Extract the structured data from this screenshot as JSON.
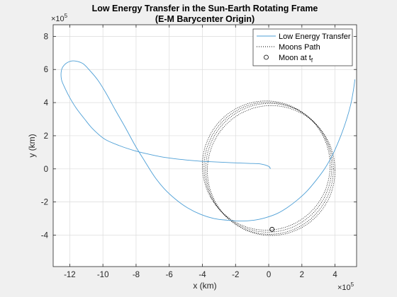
{
  "chart_data": {
    "type": "line",
    "title": "Low Energy Transfer in the Sun-Earth Rotating Frame",
    "subtitle": "(E-M Barycenter Origin)",
    "xlabel": "x (km)",
    "ylabel": "y (km)",
    "x_exponent_base": "×10",
    "x_exponent_power": "5",
    "y_exponent_base": "×10",
    "y_exponent_power": "5",
    "xlim": [
      -13,
      5.3
    ],
    "ylim": [
      -5.9,
      8.7
    ],
    "x_ticks": [
      -12,
      -10,
      -8,
      -6,
      -4,
      -2,
      0,
      2,
      4
    ],
    "x_tick_labels": [
      "-12",
      "-10",
      "-8",
      "-6",
      "-4",
      "-2",
      "0",
      "2",
      "4"
    ],
    "y_ticks": [
      -4,
      -2,
      0,
      2,
      4,
      6,
      8
    ],
    "y_tick_labels": [
      "-4",
      "-2",
      "0",
      "2",
      "4",
      "6",
      "8"
    ],
    "grid": true,
    "legend_position": "top-right",
    "units_note": "values in units of 10^5 km",
    "series": [
      {
        "name": "Low Energy Transfer",
        "style": "solid",
        "color": "#4d9fd6",
        "x": [
          0.1,
          0.0,
          -0.5,
          -1.2,
          -2.0,
          -2.8,
          -3.5,
          -4.2,
          -5.0,
          -5.8,
          -6.5,
          -7.3,
          -8.1,
          -9.0,
          -9.9,
          -10.6,
          -11.1,
          -11.6,
          -12.0,
          -12.3,
          -12.5,
          -12.5,
          -12.3,
          -11.95,
          -11.6,
          -11.2,
          -10.8,
          -10.3,
          -9.8,
          -9.25,
          -8.65,
          -8.05,
          -7.5,
          -6.9,
          -6.3,
          -5.6,
          -4.9,
          -4.1,
          -3.3,
          -2.5,
          -1.7,
          -0.9,
          -0.2,
          0.5,
          1.1,
          1.7,
          2.3,
          2.85,
          3.4,
          3.9,
          4.35,
          4.7,
          4.95,
          5.1,
          5.2
        ],
        "y": [
          0.0,
          0.15,
          0.3,
          0.33,
          0.36,
          0.4,
          0.43,
          0.47,
          0.54,
          0.63,
          0.73,
          0.9,
          1.1,
          1.4,
          1.8,
          2.4,
          3.0,
          3.65,
          4.3,
          4.9,
          5.4,
          5.95,
          6.3,
          6.5,
          6.5,
          6.35,
          5.95,
          5.35,
          4.55,
          3.55,
          2.5,
          1.4,
          0.5,
          -0.45,
          -1.2,
          -1.85,
          -2.35,
          -2.75,
          -3.0,
          -3.1,
          -3.15,
          -3.1,
          -2.95,
          -2.7,
          -2.35,
          -1.9,
          -1.35,
          -0.7,
          0.05,
          0.95,
          2.0,
          3.0,
          3.9,
          4.7,
          5.4
        ]
      },
      {
        "name": "Moons Path",
        "style": "dotted",
        "color": "#000000",
        "loops": [
          {
            "cx": -0.15,
            "cy": 0.2,
            "rx": 3.85,
            "ry": 3.9
          },
          {
            "cx": -0.05,
            "cy": 0.1,
            "rx": 3.85,
            "ry": 3.92
          },
          {
            "cx": 0.05,
            "cy": 0.0,
            "rx": 3.85,
            "ry": 3.95
          },
          {
            "cx": 0.15,
            "cy": -0.1,
            "rx": 3.85,
            "ry": 3.92
          }
        ]
      },
      {
        "name": "Moon at t",
        "name_subscript": "f",
        "style": "marker",
        "color": "#000000",
        "x": [
          0.2
        ],
        "y": [
          -3.65
        ]
      }
    ]
  }
}
